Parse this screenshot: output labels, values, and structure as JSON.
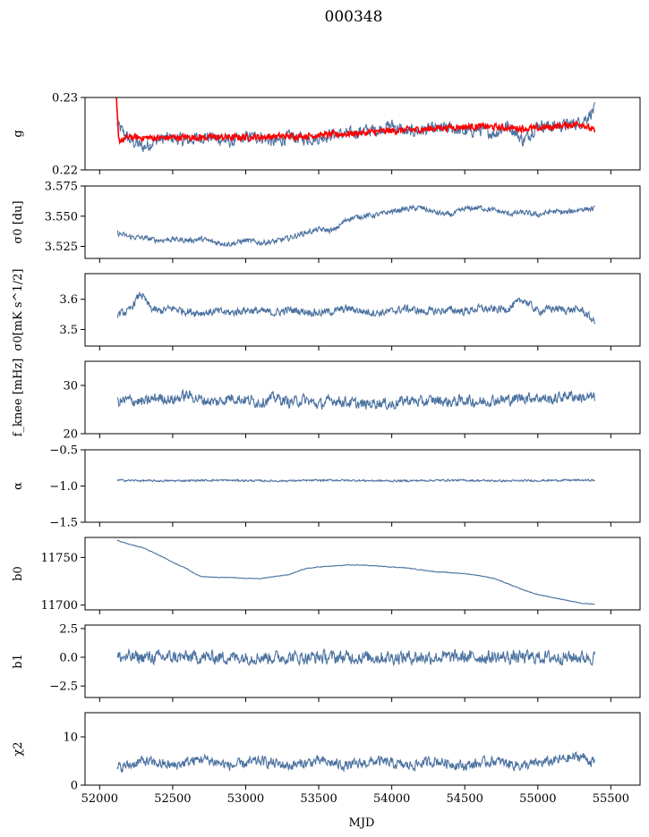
{
  "figure": {
    "title": "000348",
    "xlabel": "MJD"
  },
  "colors": {
    "series": "#4c72a0",
    "model": "#ff0000",
    "axes": "#000000"
  },
  "chart_data": [
    {
      "type": "line",
      "ylabel": "g",
      "xlim": [
        51900,
        55700
      ],
      "ylim": [
        0.22,
        0.23
      ],
      "yticks": [
        "0.22",
        "0.23"
      ],
      "ytick_values": [
        0.22,
        0.23
      ],
      "series": [
        {
          "points": [
            [
              52120,
              0.2262
            ],
            [
              52200,
              0.2242
            ],
            [
              52300,
              0.2231
            ],
            [
              52400,
              0.2242
            ],
            [
              52500,
              0.2244
            ],
            [
              52600,
              0.224
            ],
            [
              52700,
              0.2246
            ],
            [
              52800,
              0.2244
            ],
            [
              52900,
              0.2238
            ],
            [
              53000,
              0.2245
            ],
            [
              53100,
              0.2246
            ],
            [
              53200,
              0.2238
            ],
            [
              53300,
              0.2246
            ],
            [
              53400,
              0.2243
            ],
            [
              53500,
              0.2244
            ],
            [
              53600,
              0.225
            ],
            [
              53700,
              0.2249
            ],
            [
              53800,
              0.2254
            ],
            [
              53900,
              0.2255
            ],
            [
              54000,
              0.2262
            ],
            [
              54100,
              0.2252
            ],
            [
              54200,
              0.2255
            ],
            [
              54300,
              0.2256
            ],
            [
              54400,
              0.2258
            ],
            [
              54500,
              0.2252
            ],
            [
              54600,
              0.2256
            ],
            [
              54700,
              0.225
            ],
            [
              54800,
              0.2262
            ],
            [
              54900,
              0.224
            ],
            [
              55000,
              0.2262
            ],
            [
              55100,
              0.226
            ],
            [
              55200,
              0.2262
            ],
            [
              55300,
              0.2266
            ],
            [
              55390,
              0.2284
            ]
          ],
          "noise": 0.0012
        },
        {
          "points": [
            [
              52115,
              0.2297
            ],
            [
              52130,
              0.224
            ],
            [
              52200,
              0.2245
            ],
            [
              52400,
              0.2244
            ],
            [
              52600,
              0.2245
            ],
            [
              52800,
              0.2245
            ],
            [
              53000,
              0.2245
            ],
            [
              53200,
              0.2246
            ],
            [
              53400,
              0.2247
            ],
            [
              53600,
              0.2249
            ],
            [
              53800,
              0.2251
            ],
            [
              54000,
              0.2254
            ],
            [
              54200,
              0.2256
            ],
            [
              54400,
              0.2259
            ],
            [
              54600,
              0.226
            ],
            [
              54800,
              0.2258
            ],
            [
              55000,
              0.2257
            ],
            [
              55200,
              0.2262
            ],
            [
              55300,
              0.2264
            ],
            [
              55390,
              0.2253
            ]
          ],
          "noise": 0.0006
        }
      ]
    },
    {
      "type": "line",
      "ylabel": "σ0 [du]",
      "xlim": [
        51900,
        55700
      ],
      "ylim": [
        3.515,
        3.575
      ],
      "yticks": [
        "3.525",
        "3.550",
        "3.575"
      ],
      "ytick_values": [
        3.525,
        3.55,
        3.575
      ],
      "series": [
        {
          "points": [
            [
              52120,
              3.536
            ],
            [
              52200,
              3.533
            ],
            [
              52300,
              3.532
            ],
            [
              52400,
              3.53
            ],
            [
              52500,
              3.531
            ],
            [
              52600,
              3.53
            ],
            [
              52700,
              3.531
            ],
            [
              52800,
              3.528
            ],
            [
              52900,
              3.527
            ],
            [
              53000,
              3.53
            ],
            [
              53100,
              3.528
            ],
            [
              53200,
              3.529
            ],
            [
              53300,
              3.532
            ],
            [
              53400,
              3.536
            ],
            [
              53500,
              3.539
            ],
            [
              53600,
              3.538
            ],
            [
              53700,
              3.548
            ],
            [
              53800,
              3.55
            ],
            [
              53900,
              3.551
            ],
            [
              54000,
              3.554
            ],
            [
              54100,
              3.556
            ],
            [
              54200,
              3.557
            ],
            [
              54300,
              3.553
            ],
            [
              54400,
              3.551
            ],
            [
              54500,
              3.556
            ],
            [
              54600,
              3.557
            ],
            [
              54700,
              3.555
            ],
            [
              54800,
              3.552
            ],
            [
              54900,
              3.553
            ],
            [
              55000,
              3.551
            ],
            [
              55100,
              3.554
            ],
            [
              55200,
              3.553
            ],
            [
              55300,
              3.556
            ],
            [
              55390,
              3.556
            ]
          ],
          "noise": 0.003
        }
      ]
    },
    {
      "type": "line",
      "ylabel": "σ0[mK s^1/2]",
      "xlim": [
        51900,
        55700
      ],
      "ylim": [
        3.445,
        3.685
      ],
      "yticks": [
        "3.5",
        "3.6"
      ],
      "ytick_values": [
        3.5,
        3.6
      ],
      "series": [
        {
          "points": [
            [
              52120,
              3.55
            ],
            [
              52200,
              3.56
            ],
            [
              52280,
              3.62
            ],
            [
              52350,
              3.57
            ],
            [
              52400,
              3.56
            ],
            [
              52500,
              3.57
            ],
            [
              52600,
              3.56
            ],
            [
              52700,
              3.555
            ],
            [
              52800,
              3.56
            ],
            [
              52900,
              3.555
            ],
            [
              53000,
              3.565
            ],
            [
              53100,
              3.56
            ],
            [
              53200,
              3.555
            ],
            [
              53300,
              3.565
            ],
            [
              53400,
              3.56
            ],
            [
              53500,
              3.555
            ],
            [
              53600,
              3.56
            ],
            [
              53700,
              3.57
            ],
            [
              53800,
              3.56
            ],
            [
              53900,
              3.555
            ],
            [
              54000,
              3.56
            ],
            [
              54100,
              3.57
            ],
            [
              54200,
              3.56
            ],
            [
              54300,
              3.56
            ],
            [
              54400,
              3.565
            ],
            [
              54500,
              3.56
            ],
            [
              54600,
              3.57
            ],
            [
              54700,
              3.565
            ],
            [
              54800,
              3.57
            ],
            [
              54900,
              3.6
            ],
            [
              55000,
              3.56
            ],
            [
              55100,
              3.57
            ],
            [
              55200,
              3.565
            ],
            [
              55300,
              3.565
            ],
            [
              55390,
              3.525
            ]
          ],
          "noise": 0.018
        }
      ]
    },
    {
      "type": "line",
      "ylabel": "f_knee [mHz]",
      "xlim": [
        51900,
        55700
      ],
      "ylim": [
        20,
        35
      ],
      "yticks": [
        "20",
        "30"
      ],
      "ytick_values": [
        20,
        30
      ],
      "series": [
        {
          "points": [
            [
              52120,
              26.5
            ],
            [
              52200,
              27.0
            ],
            [
              52300,
              26.5
            ],
            [
              52400,
              27.5
            ],
            [
              52500,
              27.0
            ],
            [
              52600,
              28.0
            ],
            [
              52700,
              27.0
            ],
            [
              52800,
              26.5
            ],
            [
              52900,
              27.5
            ],
            [
              53000,
              27.0
            ],
            [
              53100,
              26.5
            ],
            [
              53200,
              27.5
            ],
            [
              53300,
              26.5
            ],
            [
              53400,
              27.0
            ],
            [
              53500,
              26.0
            ],
            [
              53600,
              27.0
            ],
            [
              53700,
              26.5
            ],
            [
              53800,
              26.0
            ],
            [
              53900,
              26.5
            ],
            [
              54000,
              26.0
            ],
            [
              54100,
              27.0
            ],
            [
              54200,
              26.5
            ],
            [
              54300,
              27.0
            ],
            [
              54400,
              26.5
            ],
            [
              54500,
              27.0
            ],
            [
              54600,
              26.5
            ],
            [
              54700,
              27.0
            ],
            [
              54800,
              27.0
            ],
            [
              54900,
              27.5
            ],
            [
              55000,
              27.5
            ],
            [
              55100,
              27.0
            ],
            [
              55200,
              28.0
            ],
            [
              55300,
              27.5
            ],
            [
              55390,
              27.5
            ]
          ],
          "noise": 1.6
        }
      ]
    },
    {
      "type": "line",
      "ylabel": "α",
      "xlim": [
        51900,
        55700
      ],
      "ylim": [
        -1.5,
        -0.5
      ],
      "yticks": [
        "−1.5",
        "−1.0",
        "−0.5"
      ],
      "ytick_values": [
        -1.5,
        -1.0,
        -0.5
      ],
      "series": [
        {
          "points": [
            [
              52120,
              -0.92
            ],
            [
              52400,
              -0.93
            ],
            [
              52800,
              -0.92
            ],
            [
              53200,
              -0.93
            ],
            [
              53600,
              -0.92
            ],
            [
              54000,
              -0.93
            ],
            [
              54400,
              -0.92
            ],
            [
              54800,
              -0.93
            ],
            [
              55200,
              -0.92
            ],
            [
              55390,
              -0.92
            ]
          ],
          "noise": 0.018
        }
      ]
    },
    {
      "type": "line",
      "ylabel": "b0",
      "xlim": [
        51900,
        55700
      ],
      "ylim": [
        11695,
        11771
      ],
      "yticks": [
        "11700",
        "11750"
      ],
      "ytick_values": [
        11700,
        11750
      ],
      "series": [
        {
          "points": [
            [
              52120,
              11768
            ],
            [
              52200,
              11764
            ],
            [
              52300,
              11760
            ],
            [
              52400,
              11753
            ],
            [
              52500,
              11745
            ],
            [
              52600,
              11738
            ],
            [
              52650,
              11733
            ],
            [
              52700,
              11730
            ],
            [
              52800,
              11729
            ],
            [
              52900,
              11729
            ],
            [
              53000,
              11728
            ],
            [
              53100,
              11728
            ],
            [
              53200,
              11730
            ],
            [
              53300,
              11732
            ],
            [
              53350,
              11735
            ],
            [
              53400,
              11738
            ],
            [
              53500,
              11740
            ],
            [
              53600,
              11741
            ],
            [
              53700,
              11742
            ],
            [
              53800,
              11742
            ],
            [
              53900,
              11741
            ],
            [
              54000,
              11740
            ],
            [
              54100,
              11739
            ],
            [
              54200,
              11737
            ],
            [
              54300,
              11735
            ],
            [
              54400,
              11734
            ],
            [
              54500,
              11733
            ],
            [
              54600,
              11731
            ],
            [
              54700,
              11728
            ],
            [
              54800,
              11722
            ],
            [
              54900,
              11716
            ],
            [
              55000,
              11711
            ],
            [
              55100,
              11708
            ],
            [
              55200,
              11705
            ],
            [
              55300,
              11702
            ],
            [
              55390,
              11701
            ]
          ],
          "noise": 0.5
        }
      ]
    },
    {
      "type": "line",
      "ylabel": "b1",
      "xlim": [
        51900,
        55700
      ],
      "ylim": [
        -3.5,
        2.8
      ],
      "yticks": [
        "−2.5",
        "0.0",
        "2.5"
      ],
      "ytick_values": [
        -2.5,
        0.0,
        2.5
      ],
      "series": [
        {
          "points": [
            [
              52120,
              0.0
            ],
            [
              55390,
              0.0
            ]
          ],
          "noise": 0.8
        }
      ]
    },
    {
      "type": "line",
      "ylabel": "χ2",
      "xlim": [
        51900,
        55700
      ],
      "ylim": [
        0,
        15
      ],
      "yticks": [
        "0",
        "10"
      ],
      "ytick_values": [
        0,
        10
      ],
      "series": [
        {
          "points": [
            [
              52120,
              3.5
            ],
            [
              52300,
              5.0
            ],
            [
              52500,
              4.0
            ],
            [
              52700,
              5.5
            ],
            [
              52900,
              4.0
            ],
            [
              53100,
              5.0
            ],
            [
              53300,
              4.0
            ],
            [
              53500,
              5.0
            ],
            [
              53700,
              4.0
            ],
            [
              53900,
              5.0
            ],
            [
              54100,
              4.0
            ],
            [
              54300,
              5.0
            ],
            [
              54500,
              4.0
            ],
            [
              54700,
              5.0
            ],
            [
              54900,
              4.0
            ],
            [
              55100,
              5.0
            ],
            [
              55300,
              6.0
            ],
            [
              55390,
              4.5
            ]
          ],
          "noise": 1.5
        }
      ]
    }
  ],
  "xaxis": {
    "tick_values": [
      52000,
      52500,
      53000,
      53500,
      54000,
      54500,
      55000,
      55500
    ],
    "tick_labels": [
      "52000",
      "52500",
      "53000",
      "53500",
      "54000",
      "54500",
      "55000",
      "55500"
    ]
  }
}
